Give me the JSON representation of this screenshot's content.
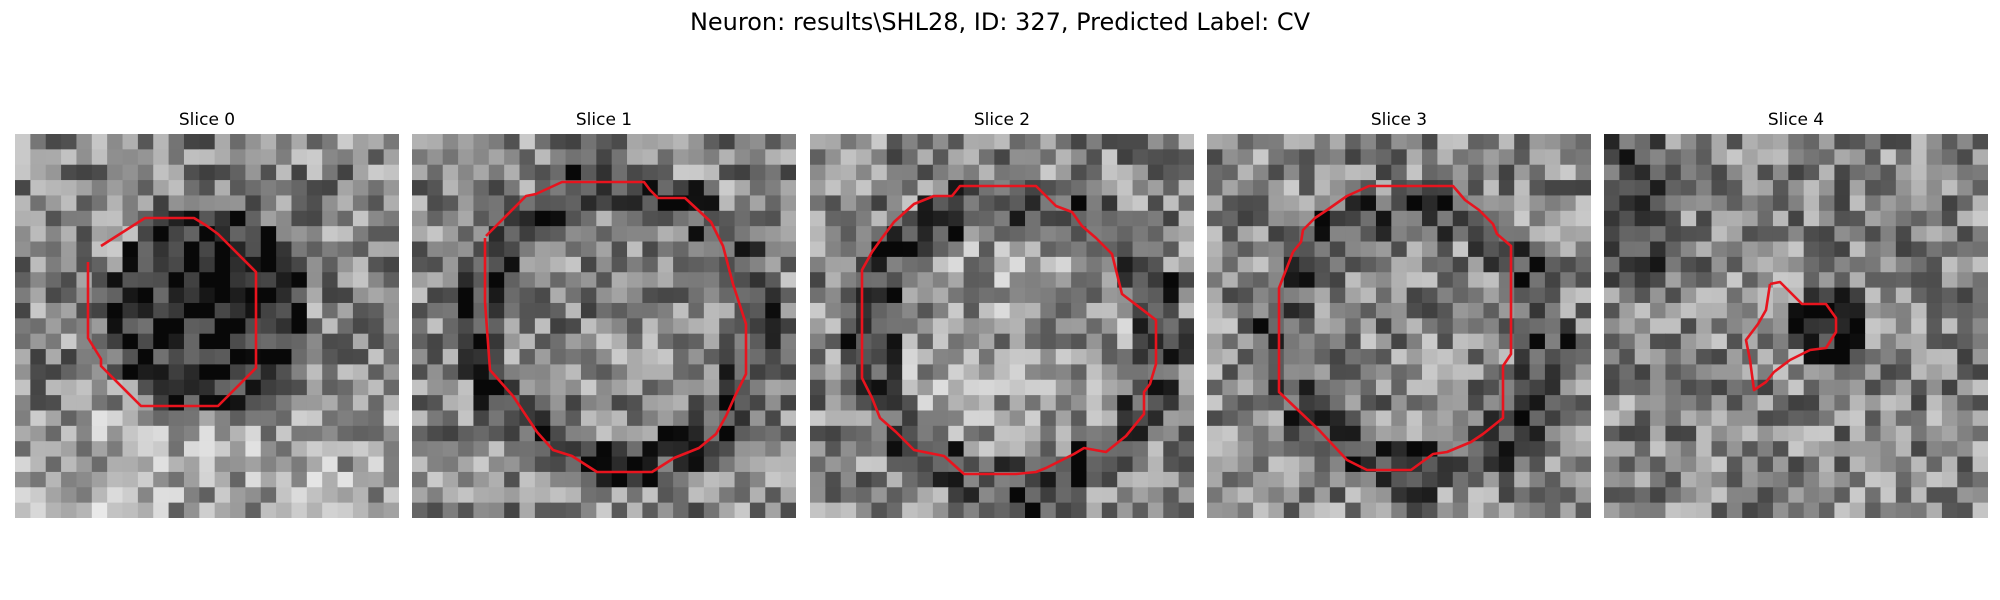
{
  "figure": {
    "title": "Neuron: results\\SHL28, ID: 327, Predicted Label: CV"
  },
  "panels": [
    {
      "title": "Slice 0",
      "kind": "dark-blob",
      "outline_color": "#e8141e"
    },
    {
      "title": "Slice 1",
      "kind": "ring",
      "outline_color": "#e8141e"
    },
    {
      "title": "Slice 2",
      "kind": "ring-light",
      "outline_color": "#e8141e"
    },
    {
      "title": "Slice 3",
      "kind": "ring",
      "outline_color": "#e8141e"
    },
    {
      "title": "Slice 4",
      "kind": "small",
      "outline_color": "#e8141e"
    }
  ]
}
